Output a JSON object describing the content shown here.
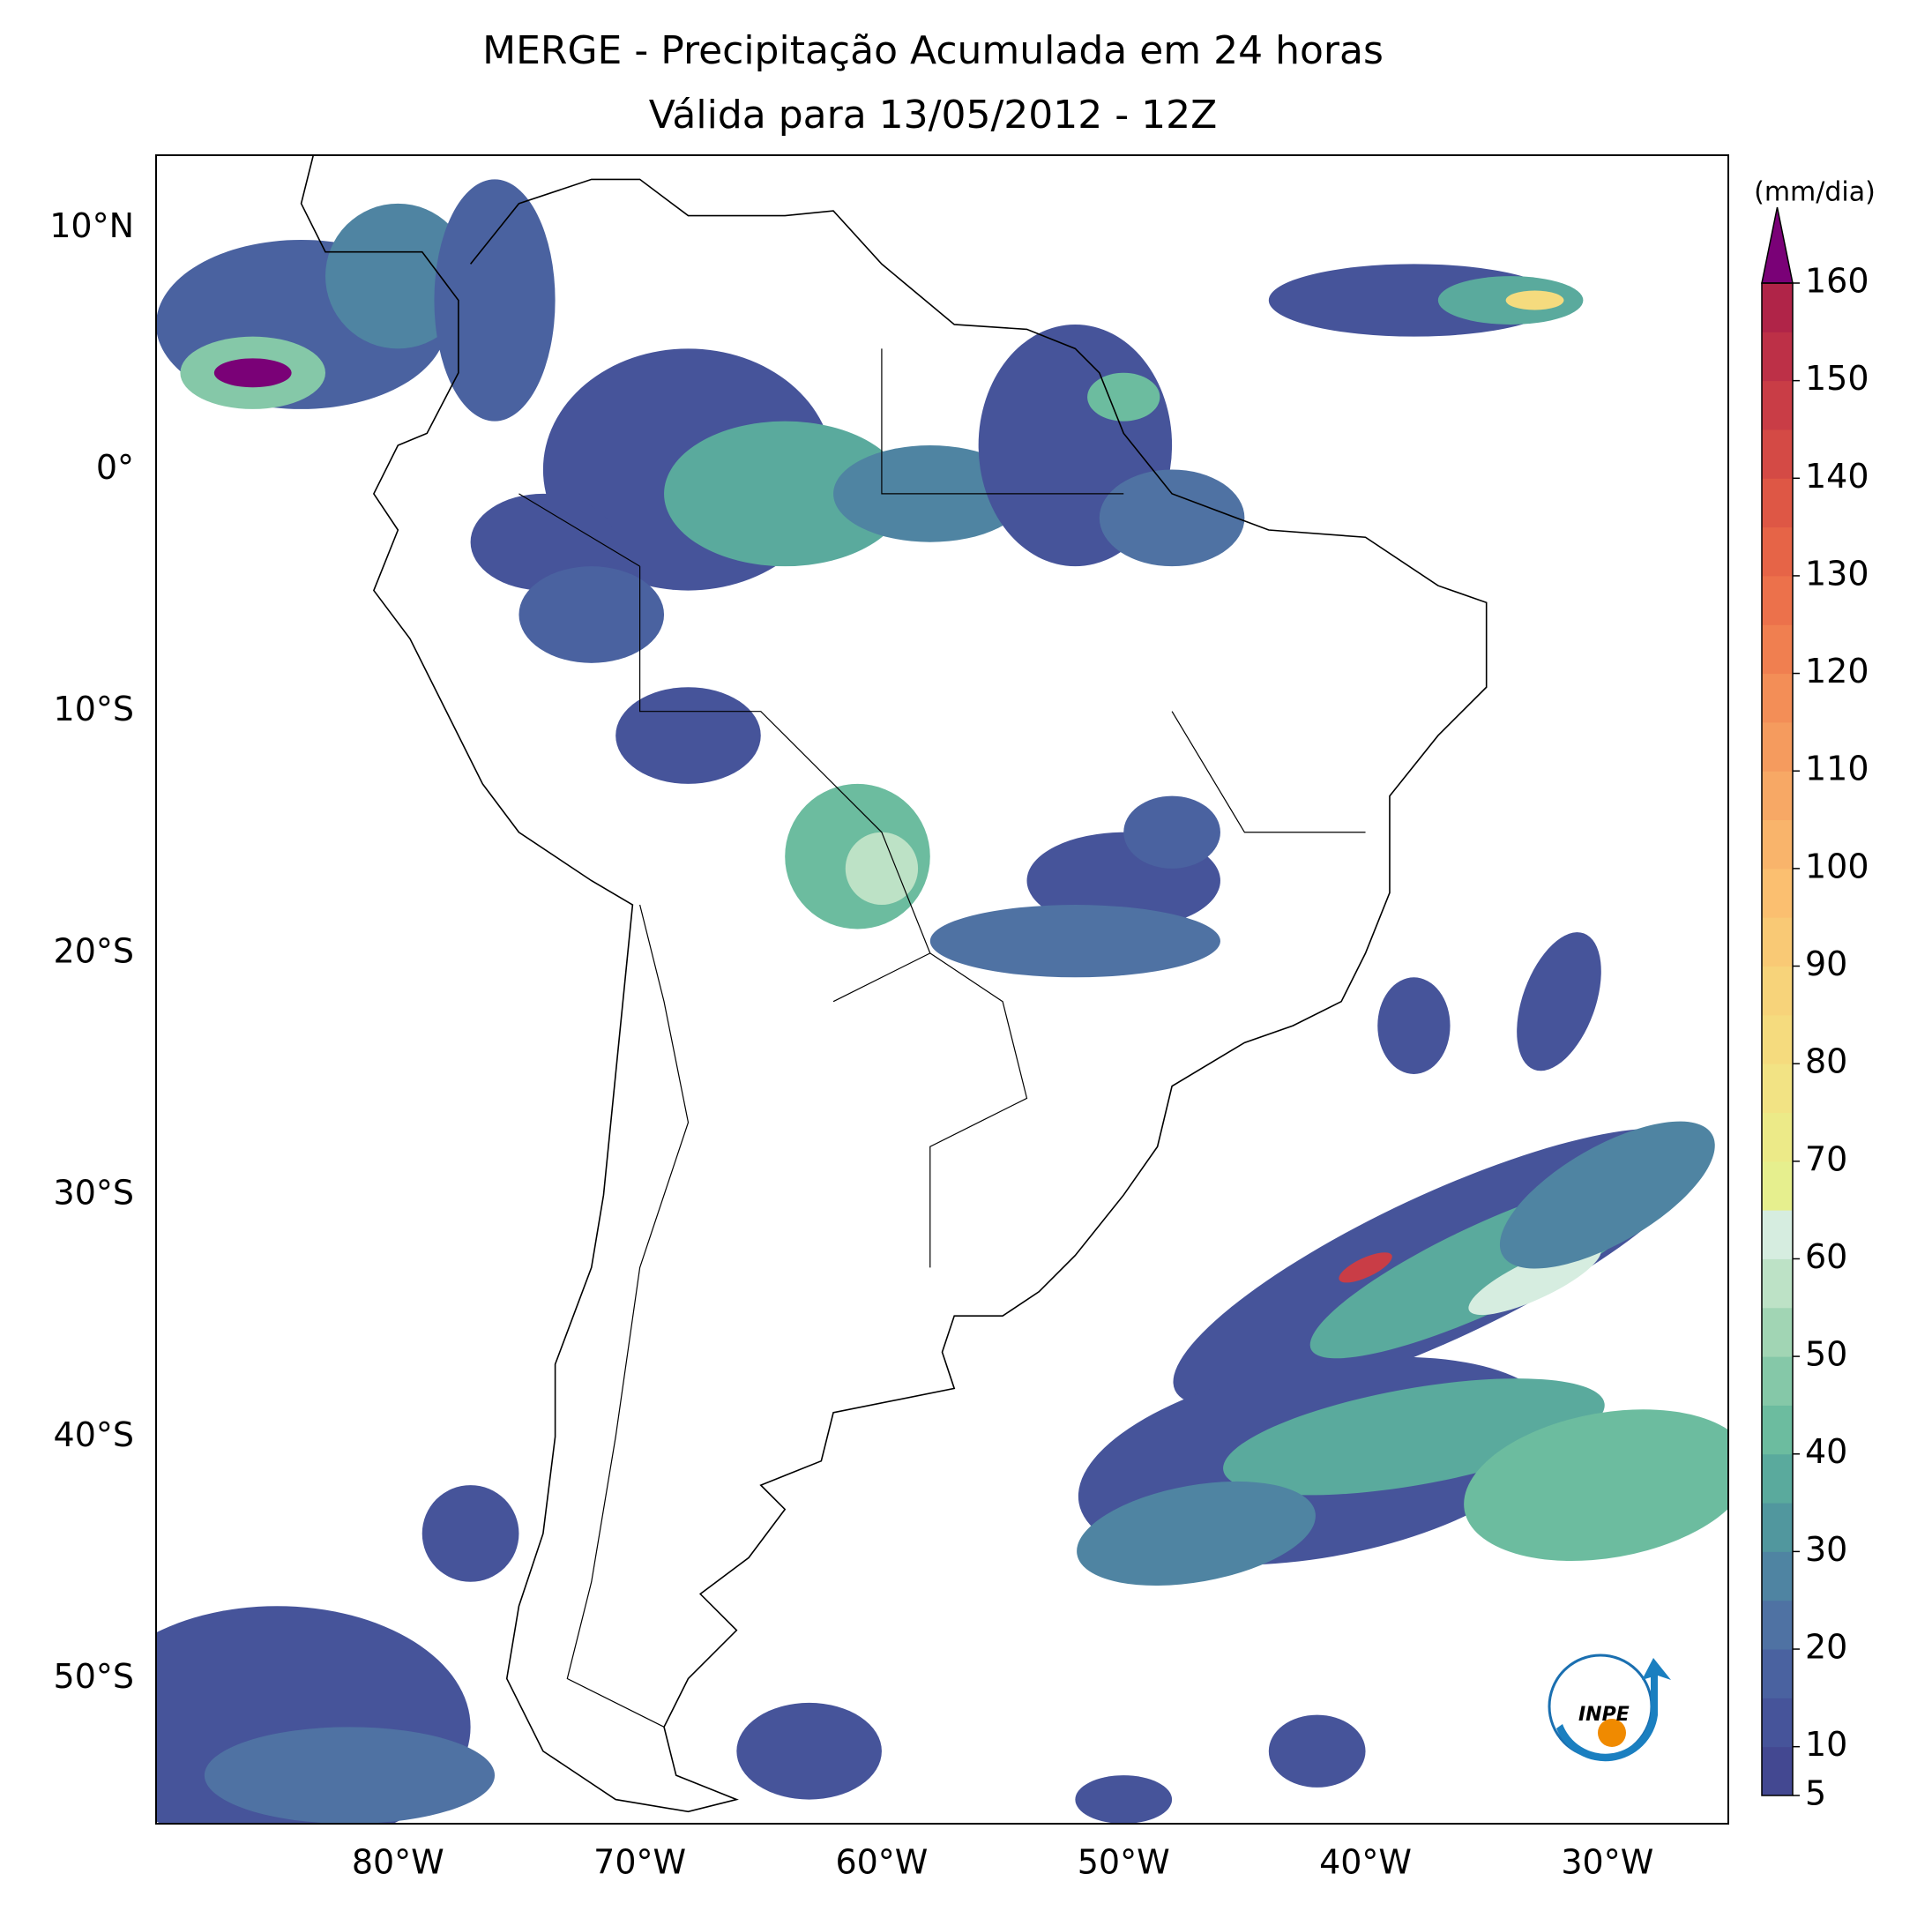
{
  "title": "MERGE - Precipitação Acumulada em 24 horas",
  "subtitle": "Válida para 13/05/2012 - 12Z",
  "map": {
    "lonlim": [
      -90,
      -25
    ],
    "latlim": [
      -56,
      13
    ],
    "lon_ticks": [
      {
        "value": -80,
        "label": "80°W"
      },
      {
        "value": -70,
        "label": "70°W"
      },
      {
        "value": -60,
        "label": "60°W"
      },
      {
        "value": -50,
        "label": "50°W"
      },
      {
        "value": -40,
        "label": "40°W"
      },
      {
        "value": -30,
        "label": "30°W"
      }
    ],
    "lat_ticks": [
      {
        "value": 10,
        "label": "10°N"
      },
      {
        "value": 0,
        "label": "0°"
      },
      {
        "value": -10,
        "label": "10°S"
      },
      {
        "value": -20,
        "label": "20°S"
      },
      {
        "value": -30,
        "label": "30°S"
      },
      {
        "value": -40,
        "label": "40°S"
      },
      {
        "value": -50,
        "label": "50°S"
      }
    ]
  },
  "colorbar": {
    "unit": "(mm/dia)",
    "range": [
      5,
      160
    ],
    "ticks": [
      5,
      10,
      20,
      30,
      40,
      50,
      60,
      70,
      80,
      90,
      100,
      110,
      120,
      130,
      140,
      150,
      160
    ],
    "colors": [
      "#434891",
      "#46549a",
      "#4a62a0",
      "#4f72a3",
      "#4f84a2",
      "#51979e",
      "#5aaa9d",
      "#6cbc9f",
      "#85c8a8",
      "#a1d5b4",
      "#bde2c6",
      "#d6ede0",
      "#e6ef8e",
      "#ecea88",
      "#f2e384",
      "#f5db7e",
      "#f7d37a",
      "#f9c975",
      "#fbbf70",
      "#f9b46b",
      "#f7a865",
      "#f59b5e",
      "#f38e57",
      "#f07f50",
      "#ec714b",
      "#e66447",
      "#de5745",
      "#d44a45",
      "#c93d46",
      "#bd3047",
      "#b02448"
    ],
    "extend_color": "#7a0177"
  },
  "logo": {
    "text": "INPE"
  }
}
